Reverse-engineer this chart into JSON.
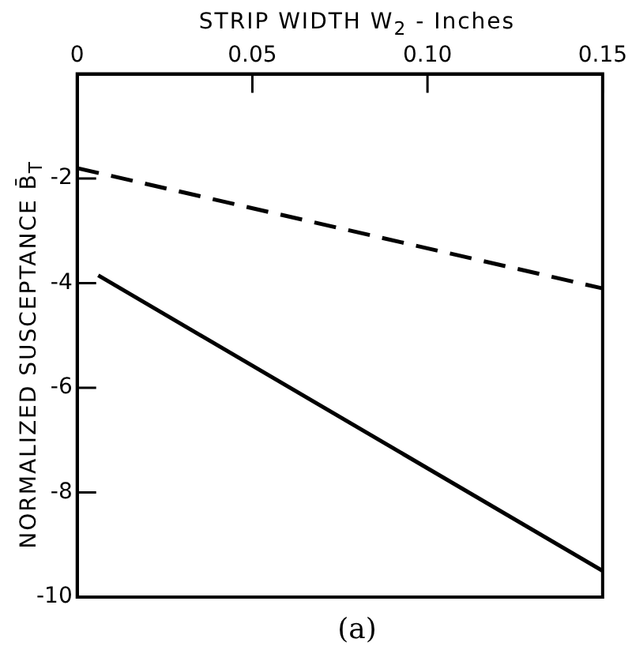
{
  "chart_data": {
    "type": "line",
    "xlabel": "STRIP WIDTH W$_{2}$ - Inches",
    "ylabel": "NORMALIZED SUSCEPTANCE B̄$_{T}$",
    "annotations": [
      "(a)"
    ],
    "xlim": [
      0,
      0.15
    ],
    "xticks": [
      {
        "value": 0,
        "label": "0"
      },
      {
        "value": 0.05,
        "label": "0.05"
      },
      {
        "value": 0.1,
        "label": "0.10"
      },
      {
        "value": 0.15,
        "label": "0.15"
      }
    ],
    "ylim": [
      -10,
      0
    ],
    "yticks": [
      -10,
      -8,
      -6,
      -4,
      -2
    ],
    "grid": false,
    "legend": false,
    "marker": "none",
    "series": [
      {
        "color": "#000000",
        "line_style": "dashed",
        "x": [
          0,
          0.15
        ],
        "values": [
          -1.8,
          -4.1
        ]
      },
      {
        "color": "#000000",
        "line_style": "solid",
        "x": [
          0.006,
          0.15
        ],
        "values": [
          -3.85,
          -9.5
        ]
      }
    ]
  }
}
